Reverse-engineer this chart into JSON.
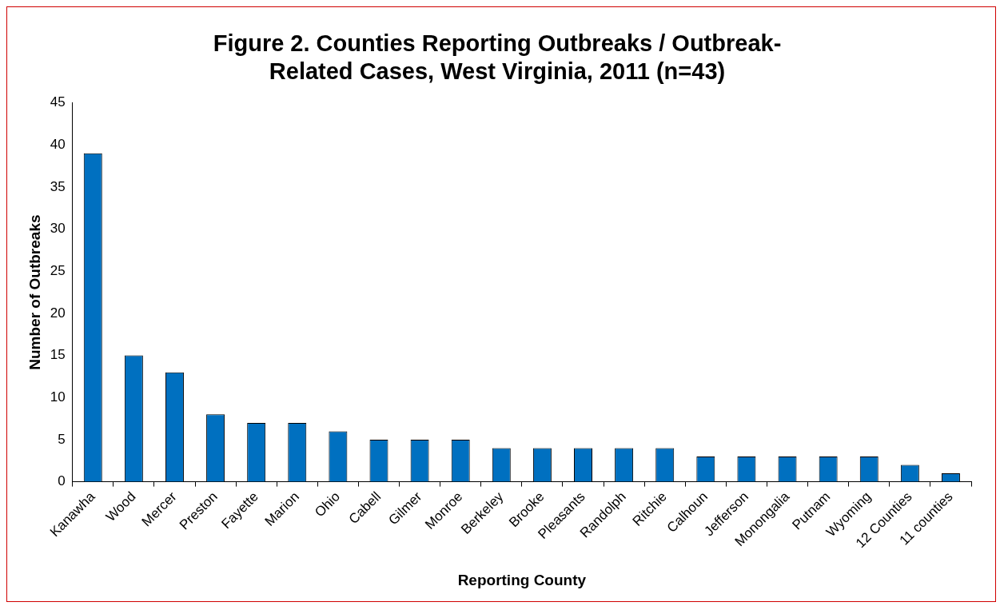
{
  "chart_data": {
    "type": "bar",
    "title": "Figure 2. Counties Reporting Outbreaks / Outbreak-Related Cases, West Virginia, 2011 (n=43)",
    "xlabel": "Reporting County",
    "ylabel": "Number of Outbreaks",
    "categories": [
      "Kanawha",
      "Wood",
      "Mercer",
      "Preston",
      "Fayette",
      "Marion",
      "Ohio",
      "Cabell",
      "Gilmer",
      "Monroe",
      "Berkeley",
      "Brooke",
      "Pleasants",
      "Randolph",
      "Ritchie",
      "Calhoun",
      "Jefferson",
      "Monongalia",
      "Putnam",
      "Wyoming",
      "12 Counties",
      "11 counties"
    ],
    "values": [
      39,
      15,
      13,
      8,
      7,
      7,
      6,
      5,
      5,
      5,
      4,
      4,
      4,
      4,
      4,
      3,
      3,
      3,
      3,
      3,
      2,
      1
    ],
    "color": "#0070c0",
    "ylim": [
      0,
      45
    ],
    "yticks": [
      0,
      5,
      10,
      15,
      20,
      25,
      30,
      35,
      40,
      45
    ],
    "grid": false,
    "legend": false
  }
}
